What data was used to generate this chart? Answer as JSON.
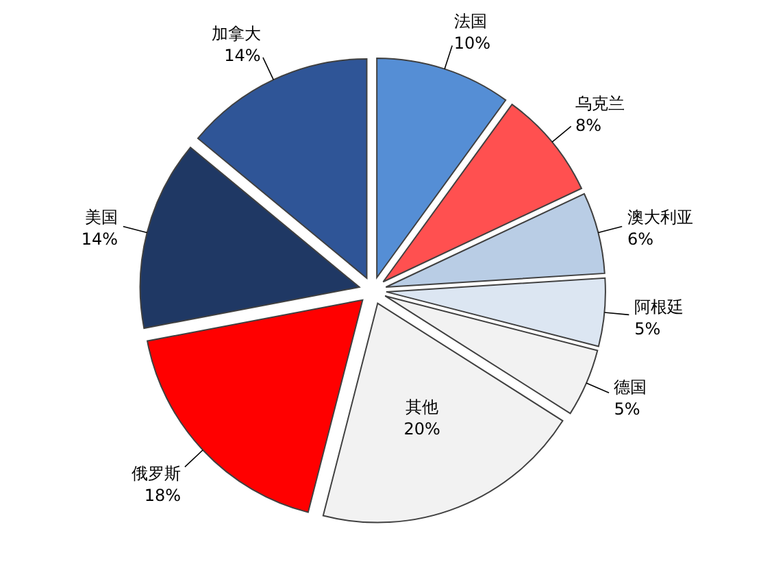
{
  "chart_data": {
    "type": "pie",
    "categories": [
      "法国",
      "乌克兰",
      "澳大利亚",
      "阿根廷",
      "德国",
      "其他",
      "俄罗斯",
      "美国",
      "加拿大"
    ],
    "values": [
      10,
      8,
      6,
      5,
      5,
      20,
      18,
      14,
      14
    ],
    "value_labels": [
      "10%",
      "8%",
      "6%",
      "5%",
      "5%",
      "20%",
      "18%",
      "14%",
      "14%"
    ],
    "colors": [
      "#558ed5",
      "#ff5050",
      "#b9cde5",
      "#dce6f2",
      "#f2f2f2",
      "#f2f2f2",
      "#ff0000",
      "#1f3864",
      "#2f5597"
    ]
  }
}
